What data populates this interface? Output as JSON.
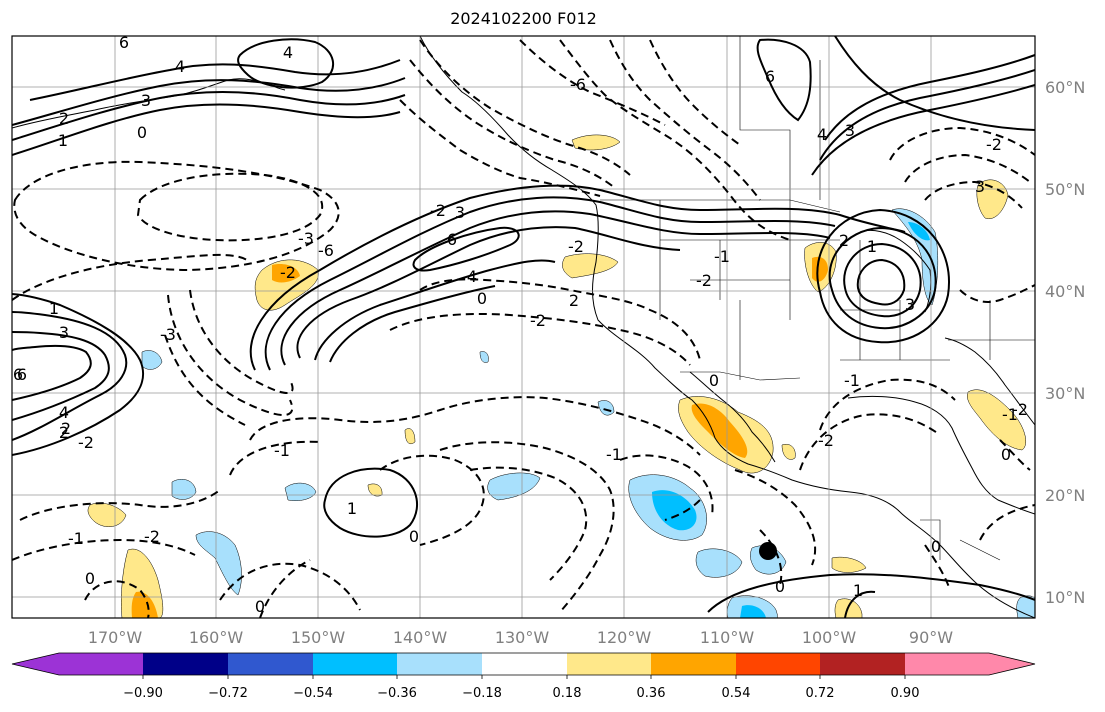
{
  "title": "2024102200 F012",
  "map": {
    "longitude_labels": [
      "170°W",
      "160°W",
      "150°W",
      "140°W",
      "130°W",
      "120°W",
      "110°W",
      "100°W",
      "90°W"
    ],
    "latitude_labels": [
      "60°N",
      "50°N",
      "40°N",
      "30°N",
      "20°N",
      "10°N"
    ],
    "grid": true,
    "coastlines": true,
    "borders": true,
    "contour_style": {
      "positive": "solid black",
      "negative": "dashed black",
      "color": "#000000"
    },
    "contour_labels": [
      {
        "text": "6"
      },
      {
        "text": "4"
      },
      {
        "text": "3"
      },
      {
        "text": "2"
      },
      {
        "text": "1"
      },
      {
        "text": "0"
      },
      {
        "text": "6"
      },
      {
        "text": "4"
      },
      {
        "text": "3"
      },
      {
        "text": "2"
      },
      {
        "text": "1"
      },
      {
        "text": "-3"
      },
      {
        "text": "-2"
      },
      {
        "text": "-6"
      },
      {
        "text": "-2"
      },
      {
        "text": "-3"
      },
      {
        "text": "6"
      },
      {
        "text": "4"
      },
      {
        "text": "0"
      },
      {
        "text": "-2"
      },
      {
        "text": "-2"
      },
      {
        "text": "-2"
      },
      {
        "text": "-6"
      },
      {
        "text": "6"
      },
      {
        "text": "4"
      },
      {
        "text": "3"
      },
      {
        "text": "-2"
      },
      {
        "text": "3"
      },
      {
        "text": "2"
      },
      {
        "text": "1"
      },
      {
        "text": "3"
      },
      {
        "text": "-1"
      },
      {
        "text": "-2"
      },
      {
        "text": "-1"
      },
      {
        "text": "-1"
      },
      {
        "text": "3"
      },
      {
        "text": "4"
      },
      {
        "text": "2"
      },
      {
        "text": "0"
      },
      {
        "text": "6"
      },
      {
        "text": "1"
      },
      {
        "text": "0"
      },
      {
        "text": "-1"
      },
      {
        "text": "-2"
      },
      {
        "text": "0"
      },
      {
        "text": "0"
      },
      {
        "text": "-1"
      },
      {
        "text": "-2"
      },
      {
        "text": "0"
      },
      {
        "text": "-1"
      },
      {
        "text": "-2"
      },
      {
        "text": "0"
      },
      {
        "text": "1"
      },
      {
        "text": "0"
      },
      {
        "text": "2"
      }
    ],
    "marker": {
      "type": "filled-circle",
      "color": "#000000"
    }
  },
  "colorbar": {
    "orientation": "horizontal",
    "extend": "both",
    "colors": [
      "#9c33d6",
      "#000088",
      "#3058cf",
      "#00bfff",
      "#a8e0fc",
      "#ffffff",
      "#ffe88a",
      "#ffa500",
      "#ff4500",
      "#b22222",
      "#ff88aa"
    ],
    "ticks": [
      "−0.90",
      "−0.72",
      "−0.54",
      "−0.36",
      "−0.18",
      "0.18",
      "0.36",
      "0.54",
      "0.72",
      "0.90"
    ]
  }
}
